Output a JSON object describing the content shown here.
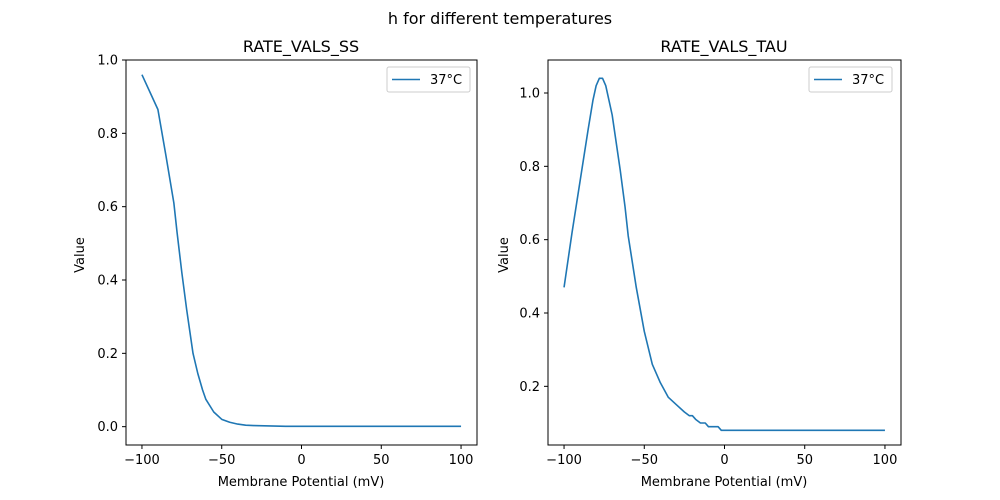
{
  "figure": {
    "suptitle": "h for different temperatures"
  },
  "chart_data": [
    {
      "type": "line",
      "title": "RATE_VALS_SS",
      "xlabel": "Membrane Potential (mV)",
      "ylabel": "Value",
      "xlim": [
        -110,
        110
      ],
      "ylim": [
        -0.05,
        1.0
      ],
      "xticks": [
        -100,
        -50,
        0,
        50,
        100
      ],
      "yticks": [
        0.0,
        0.2,
        0.4,
        0.6,
        0.8,
        1.0
      ],
      "grid": false,
      "legend_position": "top-right",
      "series": [
        {
          "name": "37°C",
          "color": "#1f77b4",
          "x": [
            -100,
            -90,
            -85,
            -80,
            -78,
            -75,
            -72,
            -70,
            -68,
            -65,
            -62,
            -60,
            -55,
            -50,
            -45,
            -40,
            -35,
            -30,
            -20,
            -10,
            0,
            50,
            100
          ],
          "y": [
            0.96,
            0.865,
            0.74,
            0.61,
            0.53,
            0.42,
            0.32,
            0.26,
            0.2,
            0.145,
            0.1,
            0.075,
            0.04,
            0.02,
            0.012,
            0.007,
            0.004,
            0.003,
            0.002,
            0.001,
            0.001,
            0.001,
            0.001
          ]
        }
      ]
    },
    {
      "type": "line",
      "title": "RATE_VALS_TAU",
      "xlabel": "Membrane Potential (mV)",
      "ylabel": "Value",
      "xlim": [
        -110,
        110
      ],
      "ylim": [
        0.04,
        1.09
      ],
      "xticks": [
        -100,
        -50,
        0,
        50,
        100
      ],
      "yticks": [
        0.2,
        0.4,
        0.6,
        0.8,
        1.0
      ],
      "grid": false,
      "legend_position": "top-right",
      "series": [
        {
          "name": "37°C",
          "color": "#1f77b4",
          "x": [
            -100,
            -95,
            -90,
            -85,
            -82,
            -80,
            -78,
            -76,
            -74,
            -72,
            -70,
            -68,
            -65,
            -62,
            -60,
            -55,
            -50,
            -45,
            -40,
            -35,
            -30,
            -25,
            -22,
            -20,
            -18,
            -15,
            -12,
            -10,
            -8,
            -6,
            -5,
            -4,
            -2,
            0,
            10,
            50,
            100
          ],
          "y": [
            0.47,
            0.62,
            0.76,
            0.9,
            0.98,
            1.02,
            1.04,
            1.04,
            1.02,
            0.98,
            0.94,
            0.88,
            0.79,
            0.69,
            0.61,
            0.47,
            0.35,
            0.26,
            0.21,
            0.17,
            0.15,
            0.13,
            0.12,
            0.12,
            0.11,
            0.1,
            0.1,
            0.09,
            0.09,
            0.09,
            0.09,
            0.09,
            0.08,
            0.08,
            0.08,
            0.08,
            0.08
          ]
        }
      ]
    }
  ]
}
